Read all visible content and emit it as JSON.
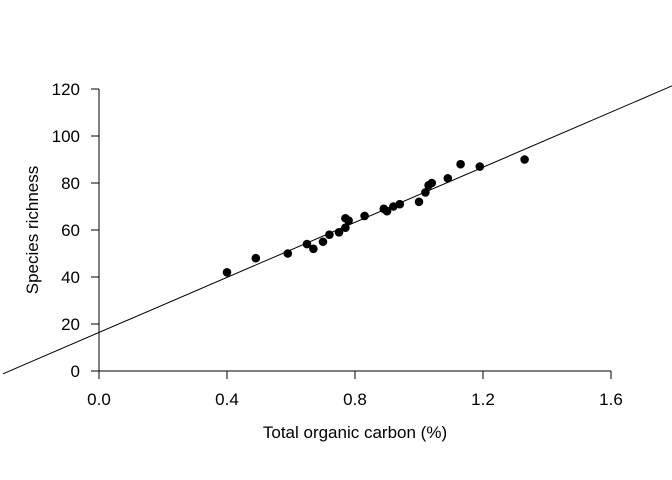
{
  "chart_data": {
    "type": "scatter",
    "title": "",
    "xlabel": "Total organic carbon (%)",
    "ylabel": "Species richness",
    "xlim": [
      0.0,
      1.6
    ],
    "ylim": [
      0,
      120
    ],
    "x_ticks": [
      0.0,
      0.4,
      0.8,
      1.2,
      1.6
    ],
    "x_tick_labels": [
      "0.0",
      "0.4",
      "0.8",
      "1.2",
      "1.6"
    ],
    "y_ticks": [
      0,
      20,
      40,
      60,
      80,
      100,
      120
    ],
    "y_tick_labels": [
      "0",
      "20",
      "40",
      "60",
      "80",
      "100",
      "120"
    ],
    "grid": false,
    "legend": "none",
    "point_color": "#000000",
    "series": [
      {
        "x": [
          0.4,
          0.49,
          0.59,
          0.65,
          0.67,
          0.7,
          0.72,
          0.75,
          0.77,
          0.77,
          0.78,
          0.83,
          0.89,
          0.9,
          0.92,
          0.94,
          1.0,
          1.02,
          1.03,
          1.04,
          1.09,
          1.13,
          1.19,
          1.33
        ],
        "y": [
          42,
          48,
          50,
          54,
          52,
          55,
          58,
          59,
          61,
          65,
          64,
          66,
          69,
          68,
          70,
          71,
          72,
          76,
          79,
          80,
          82,
          88,
          87,
          90
        ]
      }
    ],
    "fit_line": {
      "intercept": 16.4,
      "slope": 58.6
    }
  }
}
